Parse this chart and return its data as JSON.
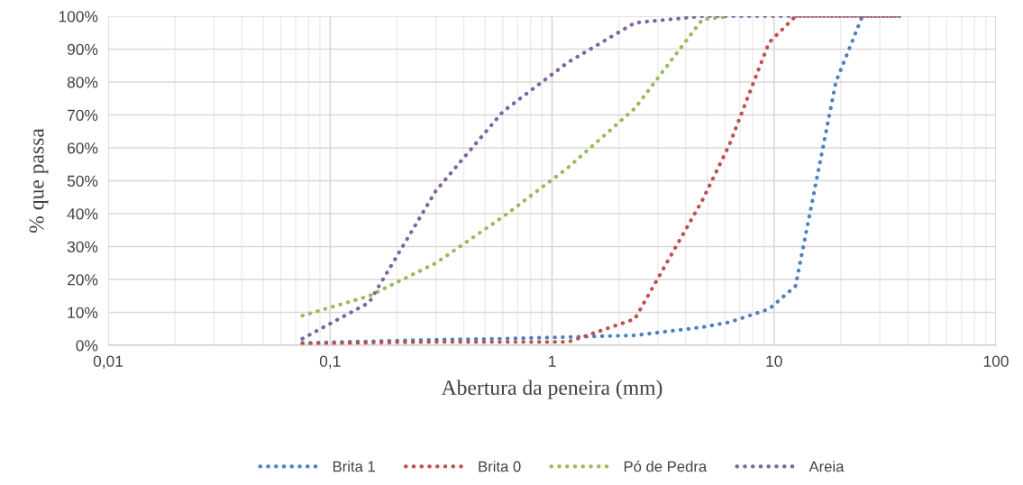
{
  "chart_data": {
    "type": "line",
    "xlabel": "Abertura da peneira (mm)",
    "ylabel": "% que passa",
    "log": "x",
    "xlim": [
      0.01,
      100
    ],
    "xticks": [
      {
        "value": 0.01,
        "label": "0,01"
      },
      {
        "value": 0.1,
        "label": "0,1"
      },
      {
        "value": 1,
        "label": "1"
      },
      {
        "value": 10,
        "label": "10"
      },
      {
        "value": 100,
        "label": "100"
      }
    ],
    "ylim": [
      0,
      100
    ],
    "yticks": [
      {
        "value": 0,
        "label": "0%"
      },
      {
        "value": 10,
        "label": "10%"
      },
      {
        "value": 20,
        "label": "20%"
      },
      {
        "value": 30,
        "label": "30%"
      },
      {
        "value": 40,
        "label": "40%"
      },
      {
        "value": 50,
        "label": "50%"
      },
      {
        "value": 60,
        "label": "60%"
      },
      {
        "value": 70,
        "label": "70%"
      },
      {
        "value": 80,
        "label": "80%"
      },
      {
        "value": 90,
        "label": "90%"
      },
      {
        "value": 100,
        "label": "100%"
      }
    ],
    "grid": true,
    "legend": "bottom",
    "line_style": "dotted",
    "marker": "none",
    "series": [
      {
        "name": "Brita 1",
        "color": "#4f81bd",
        "x": [
          0.075,
          0.15,
          0.3,
          0.6,
          1.18,
          2.36,
          4.75,
          6.3,
          9.5,
          12.5,
          19,
          25,
          37.5
        ],
        "values": [
          0.7,
          1.2,
          1.7,
          2,
          2.5,
          3,
          5.5,
          7,
          11,
          18,
          80,
          100,
          100
        ]
      },
      {
        "name": "Brita 0",
        "color": "#c0504d",
        "x": [
          0.075,
          0.15,
          0.3,
          0.6,
          1.18,
          2.36,
          4.75,
          6.3,
          9.5,
          12.5,
          19,
          25,
          37.5
        ],
        "values": [
          0.5,
          0.8,
          1,
          1,
          1,
          8,
          44,
          61,
          92,
          100,
          100,
          100,
          100
        ]
      },
      {
        "name": "Pó de Pedra",
        "color": "#9bbb59",
        "x": [
          0.075,
          0.15,
          0.3,
          0.6,
          1.18,
          2.36,
          4.75,
          6.3
        ],
        "values": [
          9,
          15,
          25,
          39,
          54,
          72,
          99,
          100
        ]
      },
      {
        "name": "Areia",
        "color": "#8064a2",
        "x": [
          0.075,
          0.15,
          0.3,
          0.6,
          1.18,
          2.36,
          4.75,
          6.3,
          9.5,
          12.5,
          19,
          25,
          37.5
        ],
        "values": [
          2,
          13,
          47,
          71,
          86,
          98,
          100,
          100,
          100,
          100,
          100,
          100,
          100
        ]
      }
    ]
  }
}
